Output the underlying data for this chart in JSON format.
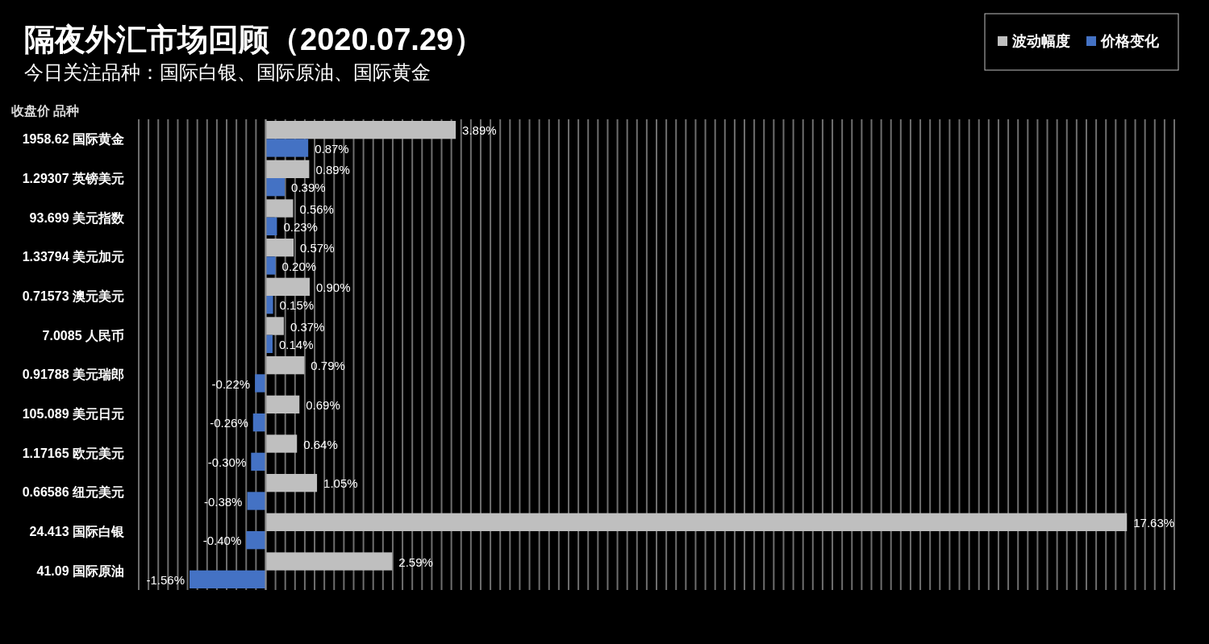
{
  "chart_data": {
    "type": "bar",
    "orientation": "horizontal",
    "title": "隔夜外汇市场回顾（2020.07.29）",
    "subtitle": "今日关注品种：国际白银、国际原油、国际黄金",
    "annotations": [
      "收盘价  品种"
    ],
    "categories": [
      "1958.62  国际黄金",
      "1.29307  英镑美元",
      "93.699  美元指数",
      "1.33794  美元加元",
      "0.71573  澳元美元",
      "7.0085  人民币",
      "0.91788  美元瑞郎",
      "105.089  美元日元",
      "1.17165  欧元美元",
      "0.66586  纽元美元",
      "24.413  国际白银",
      "41.09  国际原油"
    ],
    "series": [
      {
        "name": "波动幅度",
        "color": "#bfbfbf",
        "values": [
          3.89,
          0.89,
          0.56,
          0.57,
          0.9,
          0.37,
          0.79,
          0.69,
          0.64,
          1.05,
          17.63,
          2.59
        ],
        "value_labels": [
          "3.89%",
          "0.89%",
          "0.56%",
          "0.57%",
          "0.90%",
          "0.37%",
          "0.79%",
          "0.69%",
          "0.64%",
          "1.05%",
          "17.63%",
          "2.59%"
        ]
      },
      {
        "name": "价格变化",
        "color": "#4472c4",
        "values": [
          0.87,
          0.39,
          0.23,
          0.2,
          0.15,
          0.14,
          -0.22,
          -0.26,
          -0.3,
          -0.38,
          -0.4,
          -1.56
        ],
        "value_labels": [
          "0.87%",
          "0.39%",
          "0.23%",
          "0.20%",
          "0.15%",
          "0.14%",
          "-0.22%",
          "-0.26%",
          "-0.30%",
          "-0.38%",
          "-0.40%",
          "-1.56%"
        ]
      }
    ],
    "xlim": [
      -2.6,
      18.6
    ],
    "xticks": [
      {
        "value": -2.6,
        "label": null
      },
      {
        "value": -2.4,
        "label": null
      },
      {
        "value": -2.2,
        "label": null
      },
      {
        "value": -2.0,
        "label": null
      },
      {
        "value": -1.8,
        "label": null
      },
      {
        "value": -1.6,
        "label": null
      },
      {
        "value": -1.4,
        "label": null
      },
      {
        "value": -1.2,
        "label": null
      },
      {
        "value": -1.0,
        "label": null
      },
      {
        "value": -0.8,
        "label": null
      },
      {
        "value": -0.6,
        "label": null
      },
      {
        "value": -0.4,
        "label": null
      },
      {
        "value": -0.2,
        "label": null
      },
      {
        "value": 0,
        "label": null
      },
      {
        "value": 0.2,
        "label": null
      },
      {
        "value": 0.4,
        "label": null
      },
      {
        "value": 0.6,
        "label": null
      },
      {
        "value": 0.8,
        "label": null
      },
      {
        "value": 1.0,
        "label": null
      },
      {
        "value": 1.2,
        "label": null
      },
      {
        "value": 1.4,
        "label": null
      },
      {
        "value": 1.6,
        "label": null
      },
      {
        "value": 1.8,
        "label": null
      },
      {
        "value": 2.0,
        "label": null
      },
      {
        "value": 2.2,
        "label": null
      },
      {
        "value": 2.4,
        "label": null
      },
      {
        "value": 2.6,
        "label": null
      },
      {
        "value": 2.8,
        "label": null
      },
      {
        "value": 3.0,
        "label": null
      },
      {
        "value": 3.2,
        "label": null
      },
      {
        "value": 3.4,
        "label": null
      },
      {
        "value": 3.6,
        "label": null
      },
      {
        "value": 3.8,
        "label": null
      },
      {
        "value": 4.0,
        "label": null
      },
      {
        "value": 4.2,
        "label": null
      },
      {
        "value": 4.4,
        "label": null
      },
      {
        "value": 4.6,
        "label": null
      },
      {
        "value": 4.8,
        "label": null
      },
      {
        "value": 5.0,
        "label": null
      },
      {
        "value": 5.2,
        "label": null
      },
      {
        "value": 5.4,
        "label": null
      },
      {
        "value": 5.6,
        "label": null
      },
      {
        "value": 5.8,
        "label": null
      },
      {
        "value": 6.0,
        "label": null
      },
      {
        "value": 6.2,
        "label": null
      },
      {
        "value": 6.4,
        "label": null
      },
      {
        "value": 6.6,
        "label": null
      },
      {
        "value": 6.8,
        "label": null
      },
      {
        "value": 7.0,
        "label": null
      },
      {
        "value": 7.2,
        "label": null
      },
      {
        "value": 7.4,
        "label": null
      },
      {
        "value": 7.6,
        "label": null
      },
      {
        "value": 7.8,
        "label": null
      },
      {
        "value": 8.0,
        "label": null
      },
      {
        "value": 8.2,
        "label": null
      },
      {
        "value": 8.4,
        "label": null
      },
      {
        "value": 8.6,
        "label": null
      },
      {
        "value": 8.8,
        "label": null
      },
      {
        "value": 9.0,
        "label": null
      },
      {
        "value": 9.2,
        "label": null
      },
      {
        "value": 9.4,
        "label": null
      },
      {
        "value": 9.6,
        "label": null
      },
      {
        "value": 9.8,
        "label": null
      },
      {
        "value": 10.0,
        "label": null
      },
      {
        "value": 10.2,
        "label": null
      },
      {
        "value": 10.4,
        "label": null
      },
      {
        "value": 10.6,
        "label": null
      },
      {
        "value": 10.8,
        "label": null
      },
      {
        "value": 11.0,
        "label": null
      },
      {
        "value": 11.2,
        "label": null
      },
      {
        "value": 11.4,
        "label": null
      },
      {
        "value": 11.6,
        "label": null
      },
      {
        "value": 11.8,
        "label": null
      },
      {
        "value": 12.0,
        "label": null
      },
      {
        "value": 12.2,
        "label": null
      },
      {
        "value": 12.4,
        "label": null
      },
      {
        "value": 12.6,
        "label": null
      },
      {
        "value": 12.8,
        "label": null
      },
      {
        "value": 13.0,
        "label": null
      },
      {
        "value": 13.2,
        "label": null
      },
      {
        "value": 13.4,
        "label": null
      },
      {
        "value": 13.6,
        "label": null
      },
      {
        "value": 13.8,
        "label": null
      },
      {
        "value": 14.0,
        "label": null
      },
      {
        "value": 14.2,
        "label": null
      },
      {
        "value": 14.4,
        "label": null
      },
      {
        "value": 14.6,
        "label": null
      },
      {
        "value": 14.8,
        "label": null
      },
      {
        "value": 15.0,
        "label": null
      },
      {
        "value": 15.2,
        "label": null
      },
      {
        "value": 15.4,
        "label": null
      },
      {
        "value": 15.6,
        "label": null
      },
      {
        "value": 15.8,
        "label": null
      },
      {
        "value": 16.0,
        "label": null
      },
      {
        "value": 16.2,
        "label": null
      },
      {
        "value": 16.4,
        "label": null
      },
      {
        "value": 16.6,
        "label": null
      },
      {
        "value": 16.8,
        "label": null
      },
      {
        "value": 17.0,
        "label": null
      },
      {
        "value": 17.2,
        "label": null
      },
      {
        "value": 17.4,
        "label": null
      },
      {
        "value": 17.6,
        "label": null
      },
      {
        "value": 17.8,
        "label": null
      },
      {
        "value": 18.0,
        "label": null
      },
      {
        "value": 18.2,
        "label": null
      },
      {
        "value": 18.4,
        "label": null
      },
      {
        "value": 18.6,
        "label": null
      }
    ],
    "grid": "x",
    "legend": "top right"
  }
}
